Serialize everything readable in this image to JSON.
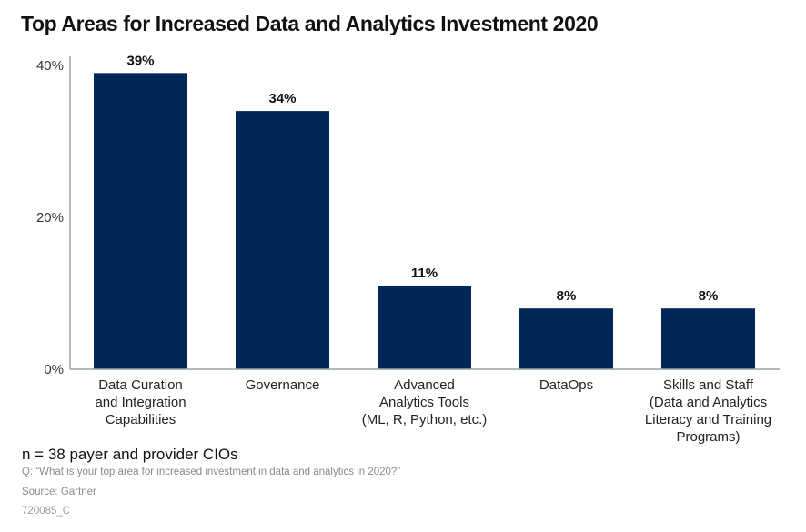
{
  "colors": {
    "bar": "#002856",
    "axis": "#9aa3a8"
  },
  "chart_data": {
    "type": "bar",
    "title": "Top Areas for Increased Data and Analytics Investment 2020",
    "xlabel": "",
    "ylabel": "",
    "ylim": [
      0,
      40
    ],
    "yticks": [
      0,
      20,
      40
    ],
    "ytick_labels": [
      "0%",
      "20%",
      "40%"
    ],
    "grid": false,
    "legend": "none",
    "categories": [
      [
        "Data Curation",
        "and Integration",
        "Capabilities"
      ],
      [
        "Governance"
      ],
      [
        "Advanced",
        "Analytics Tools",
        "(ML, R, Python, etc.)"
      ],
      [
        "DataOps"
      ],
      [
        "Skills and Staff",
        "(Data and Analytics",
        "Literacy and Training",
        "Programs)"
      ]
    ],
    "values": [
      39,
      34,
      11,
      8,
      8
    ],
    "value_labels": [
      "39%",
      "34%",
      "11%",
      "8%",
      "8%"
    ]
  },
  "footer": {
    "sample": "n = 38 payer and provider CIOs",
    "question": "Q: “What is your top area for increased investment in data and analytics in 2020?”",
    "source": "Source: Gartner",
    "id": "720085_C"
  }
}
